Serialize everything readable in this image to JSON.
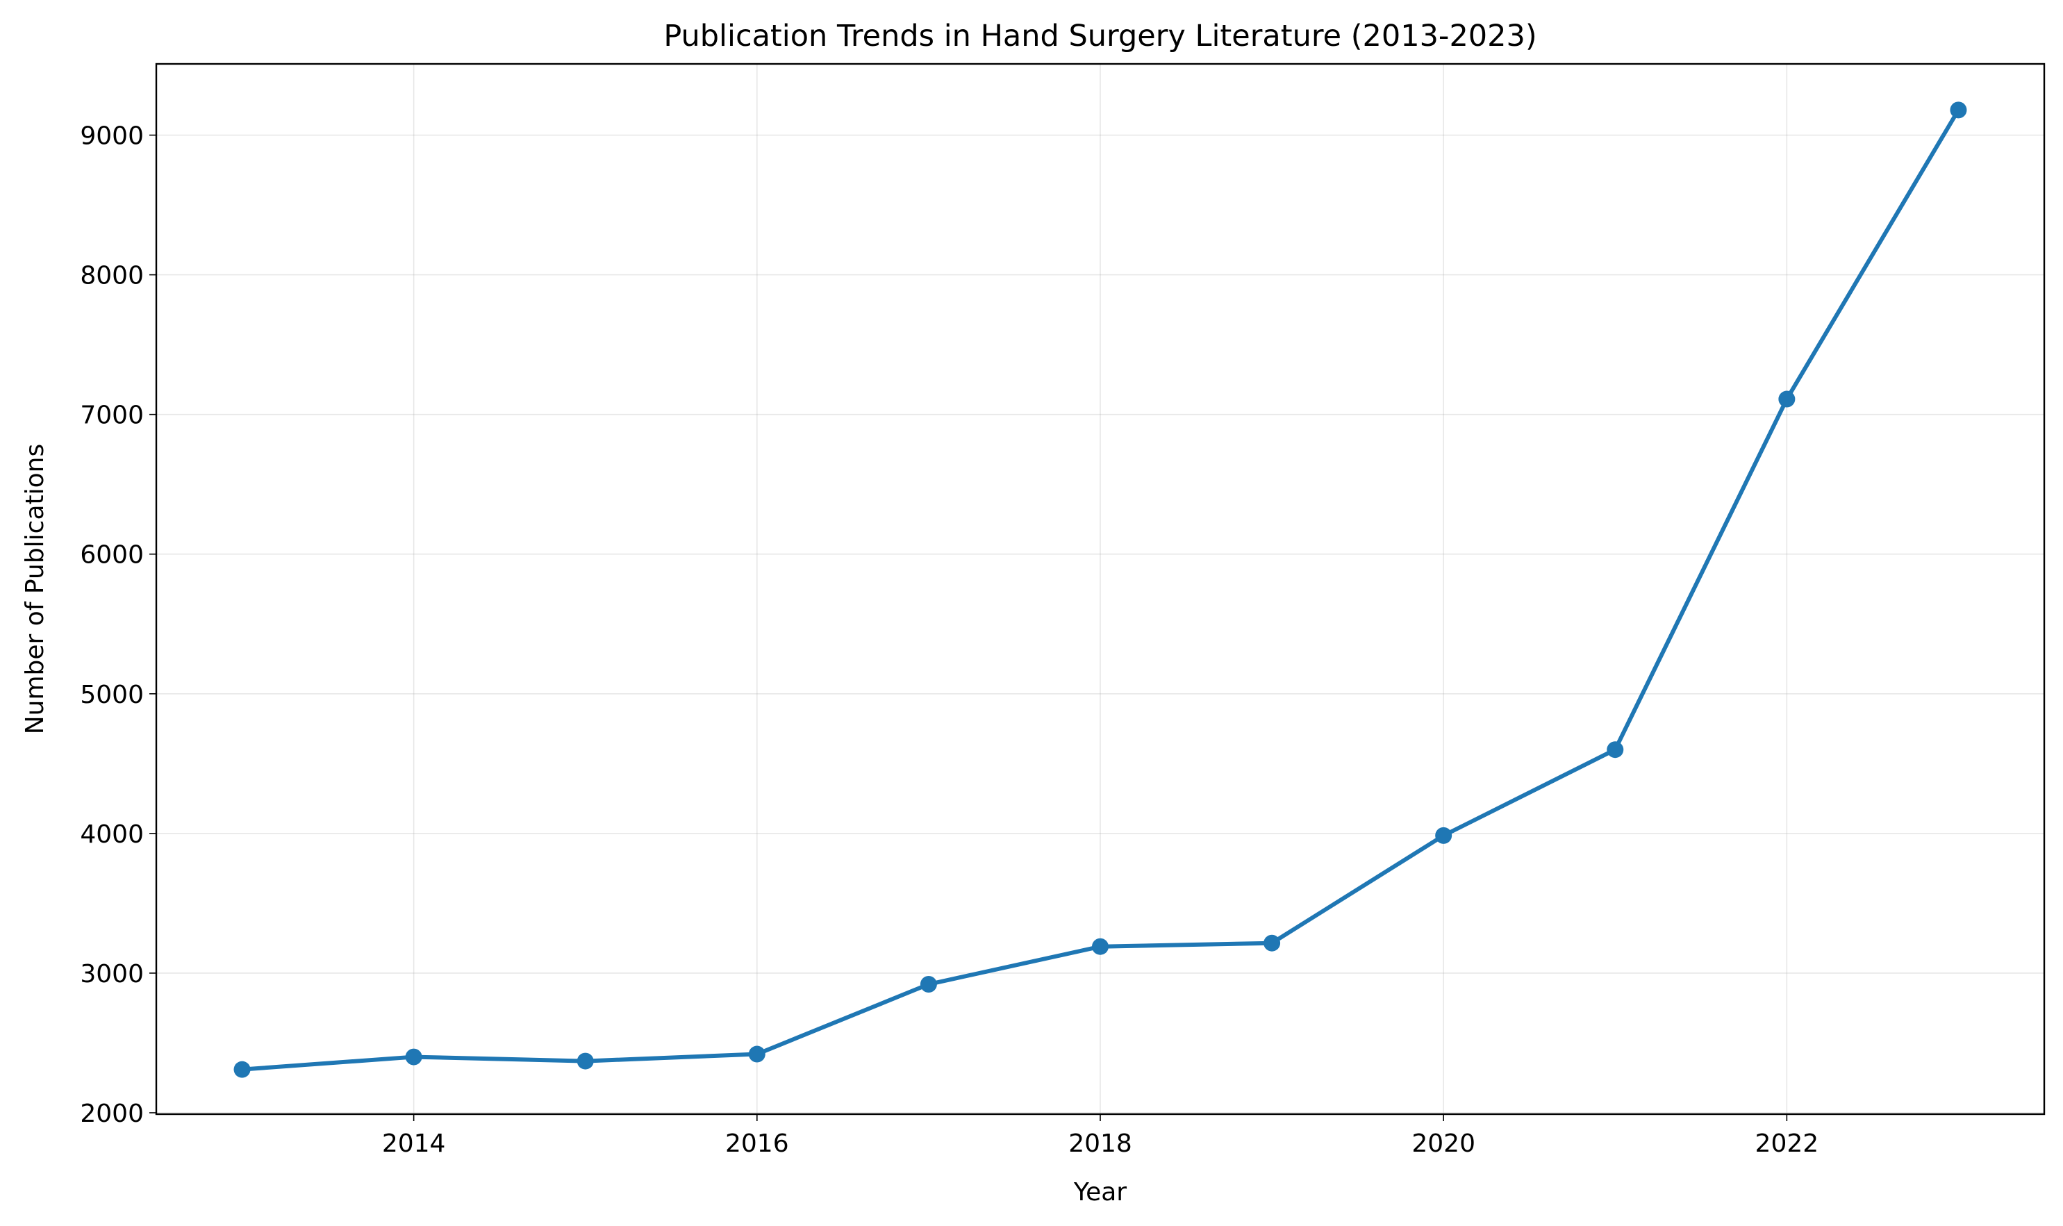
{
  "chart_data": {
    "type": "line",
    "title": "Publication Trends in Hand Surgery Literature (2013-2023)",
    "xlabel": "Year",
    "ylabel": "Number of Publications",
    "x": [
      2013,
      2014,
      2015,
      2016,
      2017,
      2018,
      2019,
      2020,
      2021,
      2022,
      2023
    ],
    "series": [
      {
        "values": [
          2310,
          2400,
          2370,
          2420,
          2920,
          3190,
          3215,
          3985,
          4600,
          7110,
          9180
        ],
        "color": "#1f77b4",
        "marker": "circle"
      }
    ],
    "xlim": [
      2012.5,
      2023.5
    ],
    "ylim": [
      1990,
      9510
    ],
    "xticks": [
      2014,
      2016,
      2018,
      2020,
      2022
    ],
    "xtick_labels": [
      "2014",
      "2016",
      "2018",
      "2020",
      "2022"
    ],
    "yticks": [
      2000,
      3000,
      4000,
      5000,
      6000,
      7000,
      8000,
      9000
    ],
    "ytick_labels": [
      "2000",
      "3000",
      "4000",
      "5000",
      "6000",
      "7000",
      "8000",
      "9000"
    ],
    "grid": true
  }
}
